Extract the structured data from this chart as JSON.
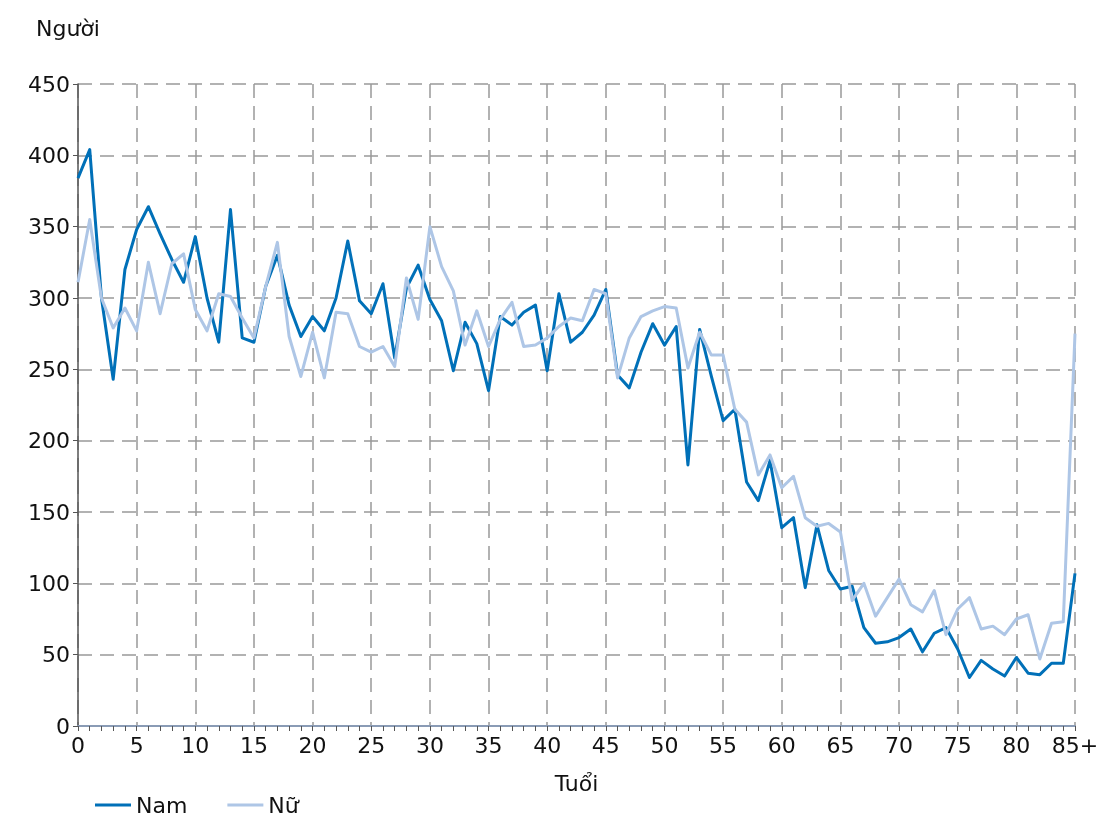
{
  "chart_data": {
    "type": "line",
    "ylabel": "Người",
    "xlabel": "Tuổi",
    "categories": [
      "0",
      null,
      null,
      null,
      null,
      "5",
      null,
      null,
      null,
      null,
      "10",
      null,
      null,
      null,
      null,
      "15",
      null,
      null,
      null,
      null,
      "20",
      null,
      null,
      null,
      null,
      "25",
      null,
      null,
      null,
      null,
      "30",
      null,
      null,
      null,
      null,
      "35",
      null,
      null,
      null,
      null,
      "40",
      null,
      null,
      null,
      null,
      "45",
      null,
      null,
      null,
      null,
      "50",
      null,
      null,
      null,
      null,
      "55",
      null,
      null,
      null,
      null,
      "60",
      null,
      null,
      null,
      null,
      "65",
      null,
      null,
      null,
      null,
      "70",
      null,
      null,
      null,
      null,
      "75",
      null,
      null,
      null,
      null,
      "80",
      null,
      null,
      null,
      null,
      "85+"
    ],
    "series": [
      {
        "name": "Nam",
        "color": "#0070b8",
        "values": [
          384,
          404,
          300,
          243,
          320,
          348,
          364,
          345,
          327,
          311,
          343,
          300,
          269,
          362,
          272,
          269,
          308,
          330,
          295,
          273,
          287,
          277,
          300,
          340,
          298,
          289,
          310,
          258,
          307,
          323,
          299,
          284,
          249,
          283,
          268,
          235,
          287,
          281,
          290,
          295,
          249,
          303,
          269,
          276,
          288,
          306,
          246,
          237,
          262,
          282,
          267,
          280,
          183,
          278,
          245,
          214,
          222,
          171,
          158,
          186,
          139,
          146,
          97,
          141,
          109,
          96,
          98,
          69,
          58,
          59,
          62,
          68,
          52,
          65,
          69,
          54,
          34,
          46,
          40,
          35,
          48,
          37,
          36,
          44,
          44,
          107
        ]
      },
      {
        "name": "Nữ",
        "color": "#aec6e6",
        "values": [
          311,
          355,
          300,
          279,
          293,
          277,
          325,
          289,
          324,
          331,
          292,
          277,
          303,
          301,
          286,
          272,
          308,
          339,
          273,
          245,
          276,
          244,
          290,
          289,
          266,
          262,
          266,
          252,
          314,
          285,
          350,
          322,
          305,
          267,
          291,
          266,
          285,
          297,
          266,
          267,
          272,
          280,
          286,
          284,
          306,
          303,
          244,
          272,
          287,
          291,
          294,
          293,
          251,
          276,
          260,
          260,
          222,
          213,
          176,
          190,
          167,
          175,
          146,
          140,
          142,
          136,
          88,
          100,
          77,
          90,
          103,
          85,
          80,
          95,
          64,
          82,
          90,
          68,
          70,
          64,
          75,
          78,
          47,
          72,
          73,
          275
        ]
      }
    ],
    "ylim": [
      0,
      450
    ],
    "yticks": [
      0,
      50,
      100,
      150,
      200,
      250,
      300,
      350,
      400,
      450
    ],
    "grid": true,
    "legend": "bottom left",
    "marker": "none",
    "line_style": "solid"
  }
}
